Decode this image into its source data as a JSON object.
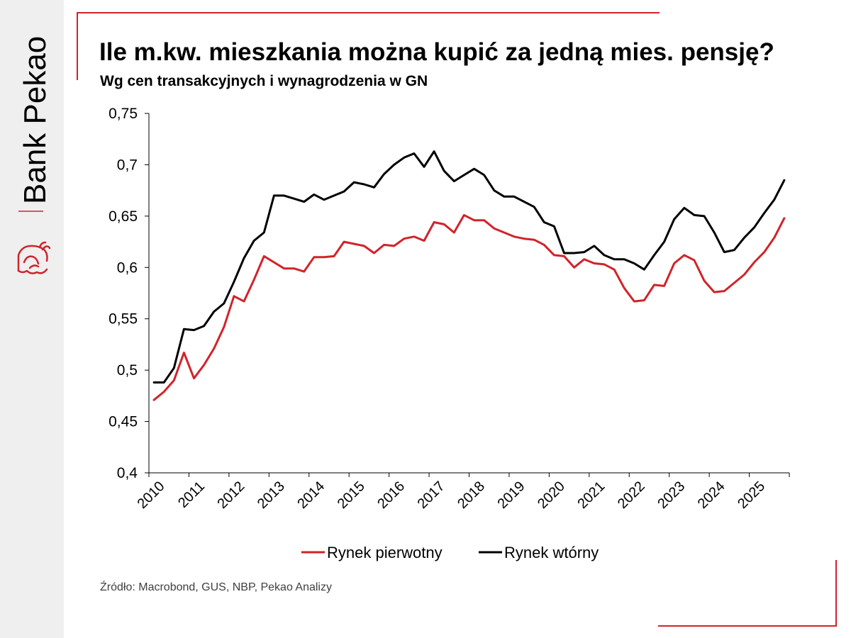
{
  "brand": {
    "name": "Bank Pekao",
    "colors": {
      "red": "#d1232a",
      "sidebar": "#efefef"
    }
  },
  "header": {
    "title": "Ile m.kw. mieszkania można kupić za jedną mies. pensję?",
    "subtitle": "Wg cen transakcyjnych i wynagrodzenia w GN"
  },
  "footer": {
    "source": "Źródło: Macrobond, GUS, NBP, Pekao Analizy"
  },
  "chart_data": {
    "type": "line",
    "title": "Ile m.kw. mieszkania można kupić za jedną mies. pensję?",
    "subtitle": "Wg cen transakcyjnych i wynagrodzenia w GN",
    "xlabel": "",
    "ylabel": "",
    "x_start_year": 2010,
    "periods_per_year": 4,
    "year_labels": [
      "2010",
      "2011",
      "2012",
      "2013",
      "2014",
      "2015",
      "2016",
      "2017",
      "2018",
      "2019",
      "2020",
      "2021",
      "2022",
      "2023",
      "2024",
      "2025"
    ],
    "ylim": [
      0.4,
      0.75
    ],
    "yticks": [
      0.4,
      0.45,
      0.5,
      0.55,
      0.6,
      0.65,
      0.7,
      0.75
    ],
    "ytick_labels": [
      "0,4",
      "0,45",
      "0,5",
      "0,55",
      "0,6",
      "0,65",
      "0,7",
      "0,75"
    ],
    "grid": false,
    "legend_position": "bottom",
    "series": [
      {
        "name": "Rynek pierwotny",
        "color": "#d1232a",
        "values": [
          0.471,
          0.479,
          0.49,
          0.517,
          0.492,
          0.505,
          0.521,
          0.542,
          0.572,
          0.567,
          0.588,
          0.611,
          0.605,
          0.599,
          0.599,
          0.596,
          0.61,
          0.61,
          0.611,
          0.625,
          0.623,
          0.621,
          0.614,
          0.622,
          0.621,
          0.628,
          0.63,
          0.626,
          0.644,
          0.642,
          0.634,
          0.651,
          0.646,
          0.646,
          0.638,
          0.634,
          0.63,
          0.628,
          0.627,
          0.622,
          0.612,
          0.611,
          0.6,
          0.608,
          0.604,
          0.603,
          0.598,
          0.58,
          0.567,
          0.568,
          0.583,
          0.582,
          0.604,
          0.612,
          0.607,
          0.587,
          0.576,
          0.577,
          0.585,
          0.593,
          0.605,
          0.615,
          0.629,
          0.648
        ]
      },
      {
        "name": "Rynek wtórny",
        "color": "#000000",
        "values": [
          0.488,
          0.488,
          0.502,
          0.54,
          0.539,
          0.543,
          0.557,
          0.565,
          0.586,
          0.609,
          0.626,
          0.634,
          0.67,
          0.67,
          0.667,
          0.664,
          0.671,
          0.666,
          0.67,
          0.674,
          0.683,
          0.681,
          0.678,
          0.691,
          0.7,
          0.707,
          0.711,
          0.698,
          0.713,
          0.694,
          0.684,
          0.69,
          0.696,
          0.69,
          0.675,
          0.669,
          0.669,
          0.664,
          0.659,
          0.644,
          0.64,
          0.614,
          0.614,
          0.615,
          0.621,
          0.612,
          0.608,
          0.608,
          0.604,
          0.598,
          0.612,
          0.625,
          0.647,
          0.658,
          0.651,
          0.65,
          0.634,
          0.615,
          0.617,
          0.629,
          0.639,
          0.653,
          0.666,
          0.685
        ]
      }
    ]
  }
}
